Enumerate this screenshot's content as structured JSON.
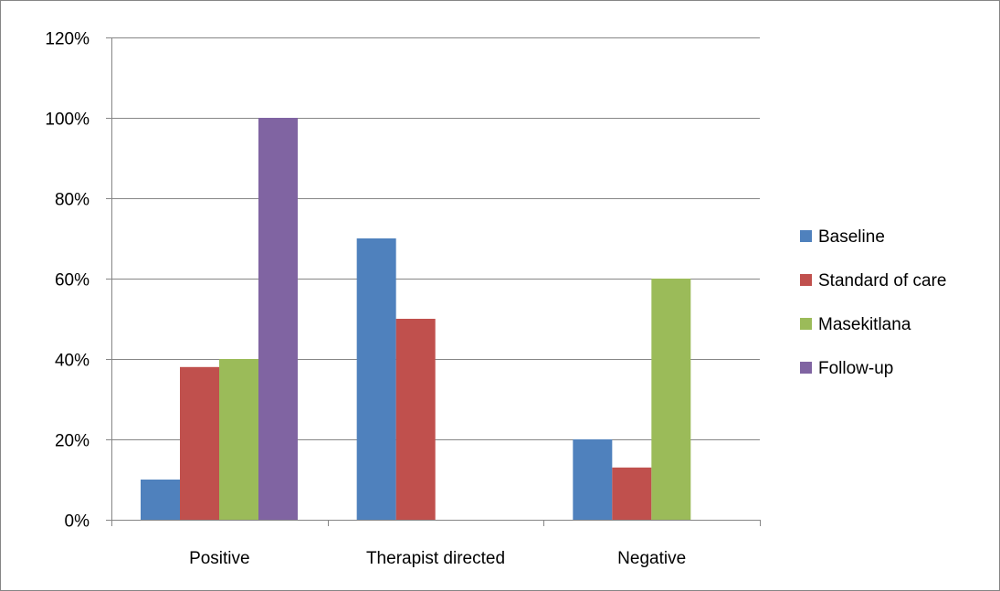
{
  "chart_data": {
    "type": "bar",
    "title": "",
    "xlabel": "",
    "ylabel": "",
    "categories": [
      "Positive",
      "Therapist directed",
      "Negative"
    ],
    "series": [
      {
        "name": "Baseline",
        "color": "#4F81BD",
        "values": [
          10,
          70,
          20
        ]
      },
      {
        "name": "Standard of care",
        "color": "#C0504D",
        "values": [
          38,
          50,
          13
        ]
      },
      {
        "name": "Masekitlana",
        "color": "#9BBB59",
        "values": [
          40,
          0,
          60
        ]
      },
      {
        "name": "Follow-up",
        "color": "#8064A2",
        "values": [
          100,
          0,
          0
        ]
      }
    ],
    "ylim": [
      0,
      120
    ],
    "yticks": [
      0,
      20,
      40,
      60,
      80,
      100,
      120
    ],
    "ytick_labels": [
      "0%",
      "20%",
      "40%",
      "60%",
      "80%",
      "100%",
      "120%"
    ],
    "value_format": "percent",
    "grid": true,
    "legend_position": "right"
  }
}
